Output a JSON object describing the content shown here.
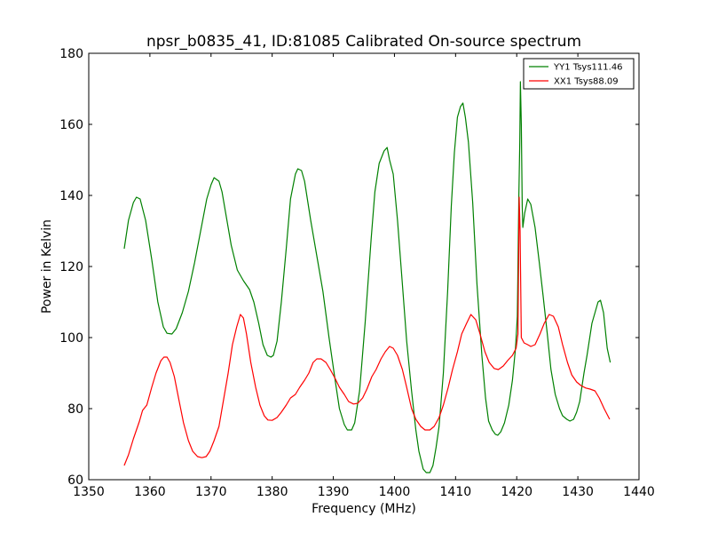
{
  "chart_data": {
    "type": "line",
    "title": "npsr_b0835_41, ID:81085 Calibrated On-source spectrum",
    "xlabel": "Frequency (MHz)",
    "ylabel": "Power in Kelvin",
    "xlim": [
      1350,
      1440
    ],
    "ylim": [
      60,
      180
    ],
    "xticks": [
      1350,
      1360,
      1370,
      1380,
      1390,
      1400,
      1410,
      1420,
      1430,
      1440
    ],
    "yticks": [
      60,
      80,
      100,
      120,
      140,
      160,
      180
    ],
    "grid": false,
    "legend_position": "top-right",
    "series": [
      {
        "name": "YY1 Tsys111.46",
        "color": "#008000",
        "points": [
          [
            1355.8,
            125
          ],
          [
            1356.5,
            133
          ],
          [
            1357.3,
            138
          ],
          [
            1357.8,
            139.5
          ],
          [
            1358.4,
            139
          ],
          [
            1359.3,
            133
          ],
          [
            1360.3,
            122
          ],
          [
            1361.3,
            110
          ],
          [
            1362.2,
            103
          ],
          [
            1362.8,
            101.2
          ],
          [
            1363.6,
            101
          ],
          [
            1364.3,
            102.5
          ],
          [
            1365.3,
            107
          ],
          [
            1366.3,
            113
          ],
          [
            1367.3,
            121
          ],
          [
            1368.3,
            130
          ],
          [
            1369.3,
            139
          ],
          [
            1370.0,
            143
          ],
          [
            1370.5,
            145
          ],
          [
            1371.3,
            144
          ],
          [
            1371.8,
            141
          ],
          [
            1372.5,
            134
          ],
          [
            1373.3,
            126
          ],
          [
            1374.3,
            119
          ],
          [
            1375.3,
            116
          ],
          [
            1376.3,
            113.5
          ],
          [
            1377.0,
            110
          ],
          [
            1377.8,
            104
          ],
          [
            1378.5,
            98
          ],
          [
            1379.2,
            95
          ],
          [
            1379.8,
            94.5
          ],
          [
            1380.2,
            95
          ],
          [
            1380.8,
            99
          ],
          [
            1381.5,
            110
          ],
          [
            1382.3,
            125
          ],
          [
            1383.0,
            139
          ],
          [
            1383.8,
            146
          ],
          [
            1384.2,
            147.5
          ],
          [
            1384.8,
            147
          ],
          [
            1385.3,
            144
          ],
          [
            1386.3,
            133
          ],
          [
            1387.3,
            123
          ],
          [
            1388.3,
            113
          ],
          [
            1389.3,
            100
          ],
          [
            1390.3,
            88
          ],
          [
            1391.0,
            80
          ],
          [
            1391.8,
            75.5
          ],
          [
            1392.3,
            74
          ],
          [
            1393.0,
            74
          ],
          [
            1393.5,
            76
          ],
          [
            1394.3,
            85
          ],
          [
            1395.2,
            104
          ],
          [
            1396.2,
            128
          ],
          [
            1396.8,
            141
          ],
          [
            1397.5,
            149
          ],
          [
            1398.3,
            152.5
          ],
          [
            1398.8,
            153.5
          ],
          [
            1399.2,
            150
          ],
          [
            1399.8,
            146
          ],
          [
            1400.5,
            133
          ],
          [
            1401.3,
            115
          ],
          [
            1402.0,
            99
          ],
          [
            1402.8,
            85
          ],
          [
            1403.5,
            74
          ],
          [
            1404.0,
            68
          ],
          [
            1404.7,
            63
          ],
          [
            1405.2,
            62
          ],
          [
            1405.8,
            62
          ],
          [
            1406.3,
            64
          ],
          [
            1406.8,
            69
          ],
          [
            1407.3,
            75
          ],
          [
            1408.0,
            90
          ],
          [
            1408.7,
            113
          ],
          [
            1409.3,
            137
          ],
          [
            1409.8,
            152
          ],
          [
            1410.3,
            162
          ],
          [
            1410.8,
            165
          ],
          [
            1411.2,
            166
          ],
          [
            1411.6,
            162
          ],
          [
            1412.1,
            155
          ],
          [
            1412.8,
            138
          ],
          [
            1413.5,
            115
          ],
          [
            1414.3,
            95
          ],
          [
            1414.9,
            83
          ],
          [
            1415.4,
            76.5
          ],
          [
            1416.0,
            74
          ],
          [
            1416.5,
            72.8
          ],
          [
            1416.9,
            72.5
          ],
          [
            1417.4,
            73.5
          ],
          [
            1418.0,
            76
          ],
          [
            1418.7,
            81
          ],
          [
            1419.3,
            88
          ],
          [
            1419.8,
            97
          ],
          [
            1420.1,
            106
          ],
          [
            1420.35,
            140
          ],
          [
            1420.5,
            155
          ],
          [
            1420.6,
            172
          ],
          [
            1420.75,
            160
          ],
          [
            1420.9,
            137
          ],
          [
            1421.0,
            131
          ],
          [
            1421.3,
            135
          ],
          [
            1421.8,
            139
          ],
          [
            1422.3,
            137.5
          ],
          [
            1423.0,
            131
          ],
          [
            1423.7,
            121
          ],
          [
            1424.3,
            112
          ],
          [
            1425.0,
            101
          ],
          [
            1425.6,
            91
          ],
          [
            1426.3,
            84
          ],
          [
            1427.0,
            80
          ],
          [
            1427.5,
            78
          ],
          [
            1428.2,
            77
          ],
          [
            1428.7,
            76.5
          ],
          [
            1429.3,
            77
          ],
          [
            1429.8,
            79
          ],
          [
            1430.3,
            82
          ],
          [
            1431.0,
            90
          ],
          [
            1431.5,
            95
          ],
          [
            1432.3,
            104
          ],
          [
            1432.8,
            107
          ],
          [
            1433.3,
            110
          ],
          [
            1433.7,
            110.5
          ],
          [
            1434.2,
            107
          ],
          [
            1434.8,
            97
          ],
          [
            1435.3,
            93
          ]
        ]
      },
      {
        "name": "XX1 Tsys88.09",
        "color": "#ff0000",
        "points": [
          [
            1355.8,
            64
          ],
          [
            1356.5,
            67
          ],
          [
            1357.3,
            71.5
          ],
          [
            1358.3,
            76.5
          ],
          [
            1358.8,
            79.5
          ],
          [
            1359.5,
            81
          ],
          [
            1360.3,
            86
          ],
          [
            1361.0,
            90
          ],
          [
            1361.8,
            93.5
          ],
          [
            1362.3,
            94.5
          ],
          [
            1362.8,
            94.5
          ],
          [
            1363.3,
            93
          ],
          [
            1364.0,
            89
          ],
          [
            1364.8,
            82
          ],
          [
            1365.5,
            76
          ],
          [
            1366.3,
            71
          ],
          [
            1367.0,
            68
          ],
          [
            1367.8,
            66.5
          ],
          [
            1368.5,
            66.2
          ],
          [
            1369.2,
            66.5
          ],
          [
            1369.8,
            68
          ],
          [
            1370.5,
            71
          ],
          [
            1371.3,
            75
          ],
          [
            1372.0,
            82
          ],
          [
            1372.8,
            90
          ],
          [
            1373.5,
            98
          ],
          [
            1374.2,
            103
          ],
          [
            1374.8,
            106.5
          ],
          [
            1375.3,
            105.5
          ],
          [
            1375.8,
            101
          ],
          [
            1376.5,
            93
          ],
          [
            1377.3,
            86
          ],
          [
            1378.0,
            81
          ],
          [
            1378.7,
            78
          ],
          [
            1379.3,
            76.8
          ],
          [
            1380.0,
            76.7
          ],
          [
            1380.8,
            77.5
          ],
          [
            1381.5,
            79
          ],
          [
            1382.3,
            81
          ],
          [
            1383.0,
            83
          ],
          [
            1383.8,
            84
          ],
          [
            1384.5,
            86
          ],
          [
            1385.3,
            88
          ],
          [
            1386.0,
            90
          ],
          [
            1386.7,
            93
          ],
          [
            1387.3,
            94
          ],
          [
            1388.0,
            94
          ],
          [
            1388.8,
            93
          ],
          [
            1389.5,
            91
          ],
          [
            1390.3,
            88.5
          ],
          [
            1391.0,
            86
          ],
          [
            1391.8,
            84
          ],
          [
            1392.5,
            82
          ],
          [
            1393.3,
            81.3
          ],
          [
            1394.0,
            81.5
          ],
          [
            1394.8,
            83
          ],
          [
            1395.5,
            85.5
          ],
          [
            1396.3,
            89
          ],
          [
            1397.0,
            91
          ],
          [
            1397.8,
            94
          ],
          [
            1398.5,
            96
          ],
          [
            1399.2,
            97.5
          ],
          [
            1399.8,
            97
          ],
          [
            1400.5,
            95
          ],
          [
            1401.3,
            91
          ],
          [
            1402.0,
            86
          ],
          [
            1402.8,
            80
          ],
          [
            1403.5,
            77
          ],
          [
            1404.3,
            75
          ],
          [
            1405.0,
            74
          ],
          [
            1405.8,
            74
          ],
          [
            1406.5,
            75
          ],
          [
            1407.3,
            77.5
          ],
          [
            1408.0,
            81
          ],
          [
            1408.8,
            86
          ],
          [
            1409.5,
            91
          ],
          [
            1410.3,
            96
          ],
          [
            1411.0,
            101
          ],
          [
            1411.8,
            104
          ],
          [
            1412.5,
            106.5
          ],
          [
            1413.3,
            105
          ],
          [
            1414.0,
            101
          ],
          [
            1414.8,
            96
          ],
          [
            1415.5,
            93
          ],
          [
            1416.3,
            91.3
          ],
          [
            1417.0,
            91
          ],
          [
            1417.8,
            92
          ],
          [
            1418.5,
            93.5
          ],
          [
            1419.3,
            95
          ],
          [
            1419.9,
            97
          ],
          [
            1420.2,
            101
          ],
          [
            1420.4,
            139.5
          ],
          [
            1420.55,
            130
          ],
          [
            1420.75,
            100
          ],
          [
            1421.2,
            98.5
          ],
          [
            1421.8,
            98
          ],
          [
            1422.3,
            97.5
          ],
          [
            1423.0,
            98
          ],
          [
            1423.8,
            101
          ],
          [
            1424.5,
            104
          ],
          [
            1425.3,
            106.5
          ],
          [
            1426.0,
            106
          ],
          [
            1426.8,
            103
          ],
          [
            1427.5,
            98
          ],
          [
            1428.3,
            93
          ],
          [
            1429.0,
            89.5
          ],
          [
            1429.8,
            87.5
          ],
          [
            1430.5,
            86.5
          ],
          [
            1431.3,
            85.8
          ],
          [
            1432.0,
            85.5
          ],
          [
            1432.8,
            85
          ],
          [
            1433.5,
            83
          ],
          [
            1434.3,
            80
          ],
          [
            1435.2,
            77
          ]
        ]
      }
    ]
  }
}
